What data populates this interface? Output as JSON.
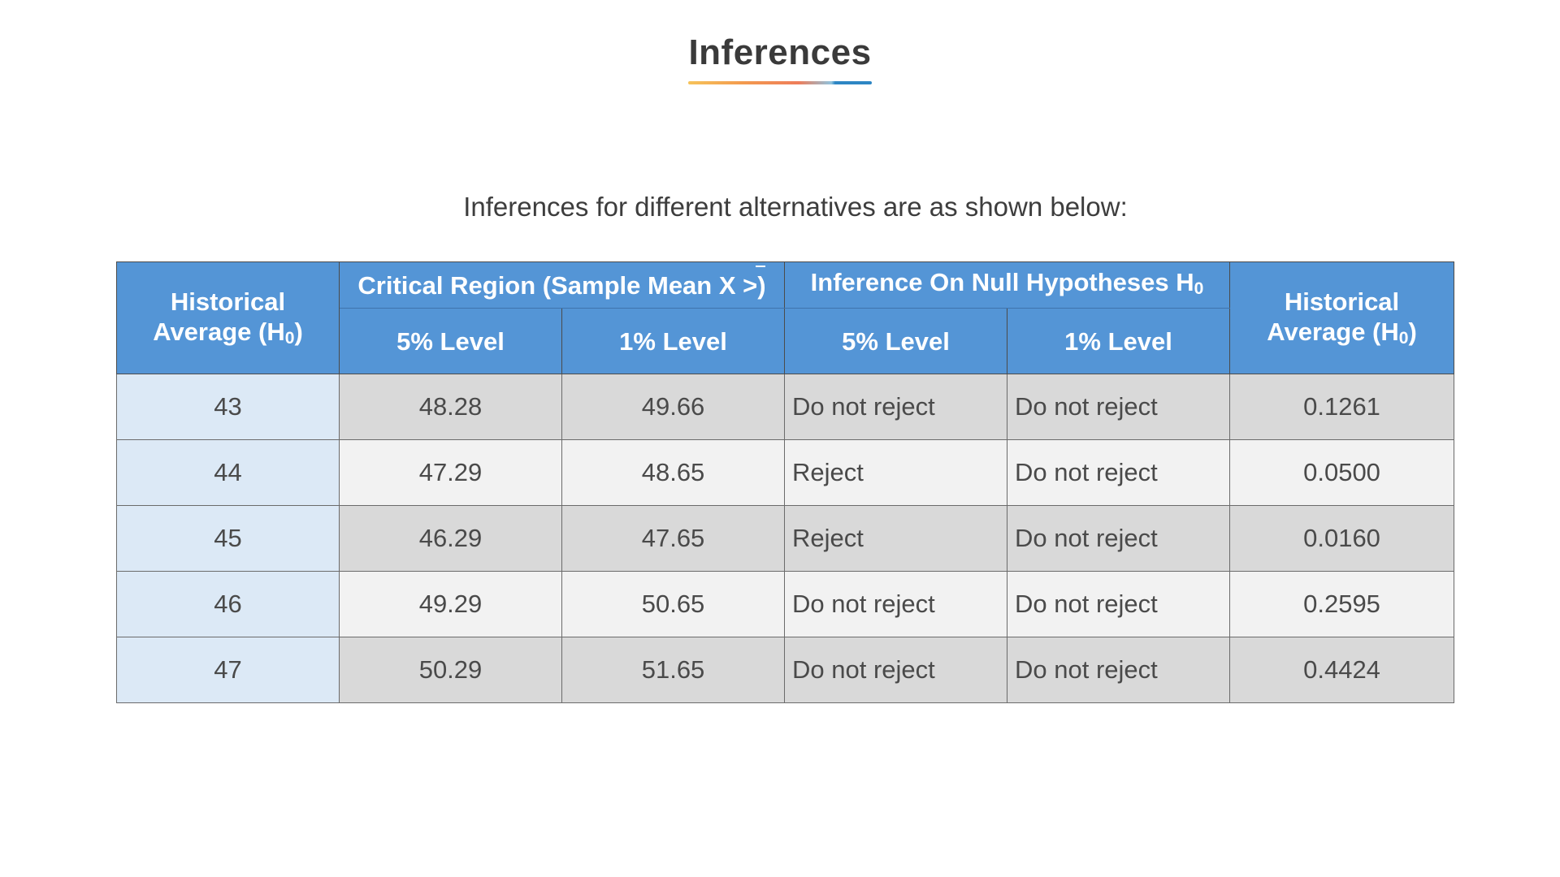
{
  "title": "Inferences",
  "subtitle": "Inferences for different alternatives are as shown below:",
  "table": {
    "col1_header_line1": "Historical",
    "col1_header_line2": "Average (H",
    "col1_header_sub": "0",
    "col1_header_close": ")",
    "critical_region_header": "Critical Region (Sample Mean X >)",
    "critical_region_prefix": "Critical Region (Sample Mean X",
    "critical_region_suffix": ">)",
    "inference_header": "Inference On Null Hypotheses H",
    "inference_header_sub": "0",
    "last_header_line1": "Historical",
    "last_header_line2": "Average (H",
    "last_header_sub": "0",
    "last_header_close": ")",
    "sub_headers": [
      "5% Level",
      "1% Level",
      "5% Level",
      "1% Level"
    ],
    "rows": [
      {
        "avg": "43",
        "cr5": "48.28",
        "cr1": "49.66",
        "inf5": "Do not reject",
        "inf1": "Do not reject",
        "pval": "0.1261"
      },
      {
        "avg": "44",
        "cr5": "47.29",
        "cr1": "48.65",
        "inf5": "Reject",
        "inf1": "Do not reject",
        "pval": "0.0500"
      },
      {
        "avg": "45",
        "cr5": "46.29",
        "cr1": "47.65",
        "inf5": "Reject",
        "inf1": "Do not reject",
        "pval": "0.0160"
      },
      {
        "avg": "46",
        "cr5": "49.29",
        "cr1": "50.65",
        "inf5": "Do not reject",
        "inf1": "Do not reject",
        "pval": "0.2595"
      },
      {
        "avg": "47",
        "cr5": "50.29",
        "cr1": "51.65",
        "inf5": "Do not reject",
        "inf1": "Do not reject",
        "pval": "0.4424"
      }
    ]
  },
  "colors": {
    "header_bg": "#5495d6",
    "first_col_bg": "#dce9f6",
    "row_dark": "#d9d9d9",
    "row_light": "#f2f2f2"
  }
}
